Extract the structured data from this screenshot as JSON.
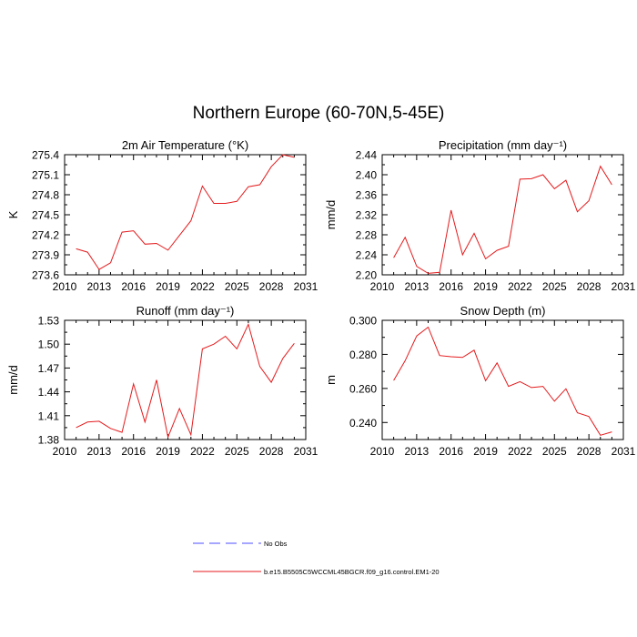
{
  "figure": {
    "title": "Northern Europe (60-70N,5-45E)",
    "line_color": "#e41a1c",
    "obs_color": "#4d4dff"
  },
  "legend": {
    "entries": [
      {
        "label": "No Obs",
        "style": "dashed",
        "color": "#4d4dff"
      },
      {
        "label": "b.e15.B5505C5WCCML45BGCR.f09_g16.control.EM1-20",
        "style": "solid",
        "color": "#e41a1c"
      }
    ]
  },
  "chart_data": [
    {
      "type": "line",
      "title": "2m Air Temperature (°K)",
      "ylabel": "K",
      "xlim": [
        2010,
        2031
      ],
      "ylim": [
        273.6,
        275.4
      ],
      "xticks": [
        "2010",
        "2013",
        "2016",
        "2019",
        "2022",
        "2025",
        "2028",
        "2031"
      ],
      "yticks": [
        "273.6",
        "273.9",
        "274.2",
        "274.5",
        "274.8",
        "275.1",
        "275.4"
      ],
      "series": [
        {
          "x": [
            2011,
            2012,
            2013,
            2014,
            2015,
            2016,
            2017,
            2018,
            2019,
            2020,
            2021,
            2022,
            2023,
            2024,
            2025,
            2026,
            2027,
            2028,
            2029,
            2030
          ],
          "y": [
            273.99,
            273.94,
            273.68,
            273.78,
            274.24,
            274.26,
            274.06,
            274.07,
            273.97,
            274.19,
            274.41,
            274.93,
            274.67,
            274.67,
            274.7,
            274.92,
            274.95,
            275.22,
            275.4,
            275.36
          ]
        }
      ]
    },
    {
      "type": "line",
      "title": "Precipitation (mm day⁻¹)",
      "ylabel": "mm/d",
      "xlim": [
        2010,
        2031
      ],
      "ylim": [
        2.2,
        2.44
      ],
      "xticks": [
        "2010",
        "2013",
        "2016",
        "2019",
        "2022",
        "2025",
        "2028",
        "2031"
      ],
      "yticks": [
        "2.20",
        "2.24",
        "2.28",
        "2.32",
        "2.36",
        "2.40",
        "2.44"
      ],
      "series": [
        {
          "x": [
            2011,
            2012,
            2013,
            2014,
            2015,
            2016,
            2017,
            2018,
            2019,
            2020,
            2021,
            2022,
            2023,
            2024,
            2025,
            2026,
            2027,
            2028,
            2029,
            2030
          ],
          "y": [
            2.234,
            2.275,
            2.217,
            2.203,
            2.205,
            2.329,
            2.24,
            2.283,
            2.232,
            2.249,
            2.257,
            2.391,
            2.392,
            2.4,
            2.372,
            2.389,
            2.326,
            2.348,
            2.417,
            2.38
          ]
        }
      ]
    },
    {
      "type": "line",
      "title": "Runoff (mm day⁻¹)",
      "ylabel": "mm/d",
      "xlim": [
        2010,
        2031
      ],
      "ylim": [
        1.38,
        1.53
      ],
      "xticks": [
        "2010",
        "2013",
        "2016",
        "2019",
        "2022",
        "2025",
        "2028",
        "2031"
      ],
      "yticks": [
        "1.38",
        "1.41",
        "1.44",
        "1.47",
        "1.50",
        "1.53"
      ],
      "series": [
        {
          "x": [
            2011,
            2012,
            2013,
            2014,
            2015,
            2016,
            2017,
            2018,
            2019,
            2020,
            2021,
            2022,
            2023,
            2024,
            2025,
            2026,
            2027,
            2028,
            2029,
            2030
          ],
          "y": [
            1.395,
            1.402,
            1.403,
            1.394,
            1.389,
            1.45,
            1.402,
            1.455,
            1.383,
            1.419,
            1.386,
            1.494,
            1.5,
            1.51,
            1.494,
            1.525,
            1.472,
            1.452,
            1.482,
            1.501
          ]
        }
      ]
    },
    {
      "type": "line",
      "title": "Snow Depth (m)",
      "ylabel": "m",
      "xlim": [
        2010,
        2031
      ],
      "ylim": [
        0.23,
        0.3
      ],
      "xticks": [
        "2010",
        "2013",
        "2016",
        "2019",
        "2022",
        "2025",
        "2028",
        "2031"
      ],
      "yticks": [
        "0.240",
        "0.260",
        "0.280",
        "0.300"
      ],
      "ytick_values": [
        0.24,
        0.26,
        0.28,
        0.3
      ],
      "series": [
        {
          "x": [
            2011,
            2012,
            2013,
            2014,
            2015,
            2016,
            2017,
            2018,
            2019,
            2020,
            2021,
            2022,
            2023,
            2024,
            2025,
            2026,
            2027,
            2028,
            2029,
            2030
          ],
          "y": [
            0.2647,
            0.2763,
            0.2908,
            0.296,
            0.2793,
            0.2786,
            0.2782,
            0.2825,
            0.2645,
            0.275,
            0.2612,
            0.264,
            0.2605,
            0.2612,
            0.2525,
            0.2598,
            0.2457,
            0.2435,
            0.2325,
            0.2345
          ]
        }
      ]
    }
  ]
}
